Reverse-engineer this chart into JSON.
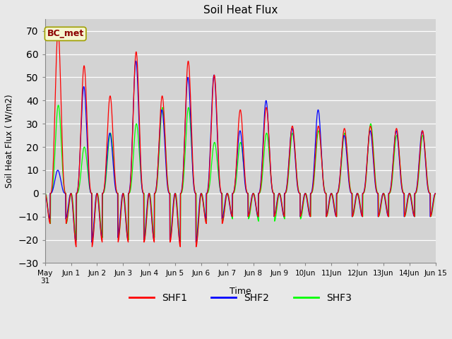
{
  "title": "Soil Heat Flux",
  "ylabel": "Soil Heat Flux ( W/m2)",
  "xlabel": "Time",
  "ylim": [
    -30,
    75
  ],
  "yticks": [
    -30,
    -20,
    -10,
    0,
    10,
    20,
    30,
    40,
    50,
    60,
    70
  ],
  "bg_color": "#e8e8e8",
  "plot_bg_color": "#d3d3d3",
  "grid_color": "white",
  "series": [
    "SHF1",
    "SHF2",
    "SHF3"
  ],
  "colors": [
    "red",
    "blue",
    "lime"
  ],
  "annotation_text": "BC_met",
  "annotation_color": "#8b0000",
  "annotation_bg": "#f5f5d0",
  "annotation_border": "#a0a000",
  "tick_labels": [
    "May\n31",
    "Jun 1",
    "Jun 2",
    "Jun 3",
    "Jun 4",
    "Jun 5",
    "Jun 6",
    "Jun 7",
    "Jun 8",
    "Jun 9",
    "10Jun",
    "11Jun",
    "12Jun",
    "13Jun",
    "14Jun",
    "Jun 15"
  ],
  "day_peaks_shf1": [
    70,
    55,
    42,
    61,
    42,
    57,
    51,
    36,
    37,
    29,
    29,
    28,
    29,
    28,
    27,
    30
  ],
  "day_peaks_shf2": [
    10,
    46,
    26,
    57,
    36,
    50,
    51,
    27,
    40,
    28,
    36,
    25,
    27,
    27,
    27,
    26
  ],
  "day_peaks_shf3": [
    38,
    20,
    26,
    30,
    37,
    37,
    22,
    22,
    26,
    26,
    27,
    26,
    30,
    25,
    25,
    26
  ],
  "day_troughs_shf1": [
    -13,
    -23,
    -21,
    -21,
    -21,
    -23,
    -13,
    -10,
    -10,
    -10,
    -10,
    -10,
    -10,
    -10,
    -10,
    -10
  ],
  "day_troughs_shf2": [
    -11,
    -21,
    -19,
    -20,
    -20,
    -21,
    -11,
    -10,
    -10,
    -10,
    -10,
    -10,
    -10,
    -10,
    -10,
    -10
  ],
  "day_troughs_shf3": [
    -13,
    -20,
    -19,
    -20,
    -19,
    -21,
    -12,
    -11,
    -12,
    -11,
    -10,
    -10,
    -10,
    -10,
    -10,
    -11
  ]
}
